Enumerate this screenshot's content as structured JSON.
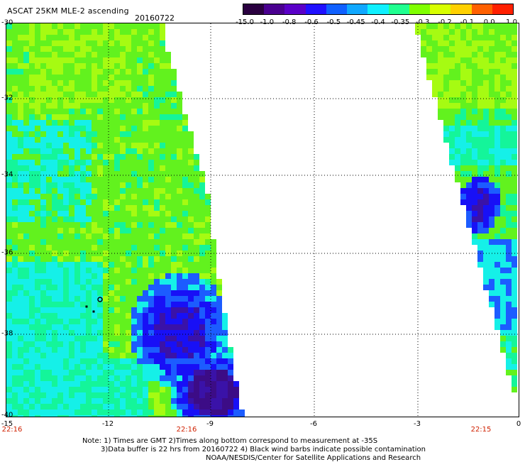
{
  "header": {
    "title": "ASCAT 25KM MLE-2 ascending",
    "date": "20160722"
  },
  "colorbar": {
    "labels": [
      "-15.0",
      "-1.0",
      "-0.8",
      "-0.6",
      "-0.5",
      "-0.45",
      "-0.4",
      "-0.35",
      "-0.3",
      "-0.2",
      "-0.1",
      "0.0",
      "1.0"
    ],
    "colors": [
      "#2a0040",
      "#4a0090",
      "#5a00c8",
      "#2010ff",
      "#1060ff",
      "#10a8ff",
      "#10f0ff",
      "#20ff90",
      "#80ff00",
      "#d8ff00",
      "#ffd000",
      "#ff6000",
      "#ff2000"
    ]
  },
  "map": {
    "y_ticks": [
      "-30",
      "-32",
      "-34",
      "-36",
      "-38",
      "-40"
    ],
    "x_ticks": [
      "-15",
      "-12",
      "-9",
      "-6",
      "-3",
      "0"
    ],
    "time_labels": [
      "22:16",
      "22:16",
      "22:15"
    ],
    "colors": {
      "green": "#62f21e",
      "yellowgreen": "#a6fb12",
      "aquagreen": "#14f59a",
      "cyan": "#15f0e8",
      "blue": "#1c5cff",
      "deepblue": "#1810f6",
      "purple": "#3a12a8",
      "darkpurple": "#3c0c86"
    }
  },
  "notes": {
    "line1": "Note: 1) Times are GMT 2)Times along bottom correspond to measurement at -35S",
    "line2": "3)Data buffer is 22 hrs from 20160722 4) Black wind barbs indicate possible contamination",
    "line3": "NOAA/NESDIS/Center for Satellite Applications and Research"
  }
}
